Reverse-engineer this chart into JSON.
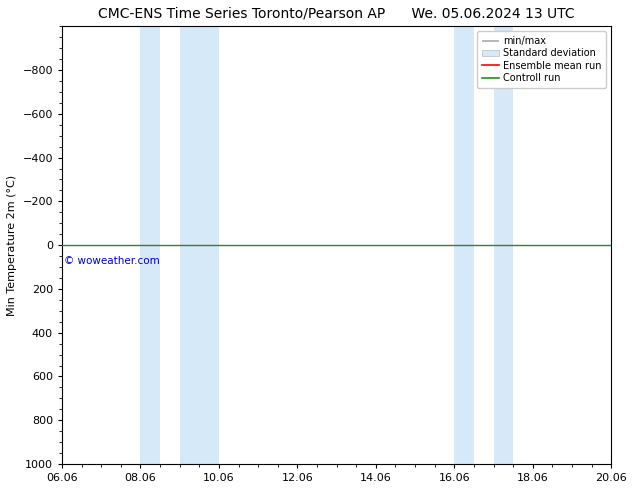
{
  "title_left": "CMC-ENS Time Series Toronto/Pearson AP",
  "title_right": "We. 05.06.2024 13 UTC",
  "ylabel": "Min Temperature 2m (°C)",
  "xlim": [
    6.06,
    20.06
  ],
  "ylim": [
    1000,
    -1000
  ],
  "yticks": [
    -800,
    -600,
    -400,
    -200,
    0,
    200,
    400,
    600,
    800,
    1000
  ],
  "xticks": [
    6.06,
    8.06,
    10.06,
    12.06,
    14.06,
    16.06,
    18.06,
    20.06
  ],
  "xticklabels": [
    "06.06",
    "08.06",
    "10.06",
    "12.06",
    "14.06",
    "16.06",
    "18.06",
    "20.06"
  ],
  "blue_bands": [
    [
      8.06,
      8.56
    ],
    [
      9.06,
      10.06
    ],
    [
      16.06,
      16.56
    ],
    [
      17.06,
      17.56
    ]
  ],
  "band_color": "#d6e9f8",
  "control_run_y": 0,
  "control_run_color": "#228B22",
  "ensemble_mean_color": "#ff0000",
  "minmax_color": "#aaaaaa",
  "stddev_color": "#d6e9f8",
  "watermark": "© woweather.com",
  "watermark_color": "#0000cc",
  "background_color": "#ffffff",
  "plot_bg_color": "#f5f5f5",
  "legend_entries": [
    "min/max",
    "Standard deviation",
    "Ensemble mean run",
    "Controll run"
  ],
  "legend_colors": [
    "#aaaaaa",
    "#d6e9f8",
    "#ff0000",
    "#228B22"
  ],
  "title_fontsize": 10,
  "axis_fontsize": 8,
  "tick_fontsize": 8
}
